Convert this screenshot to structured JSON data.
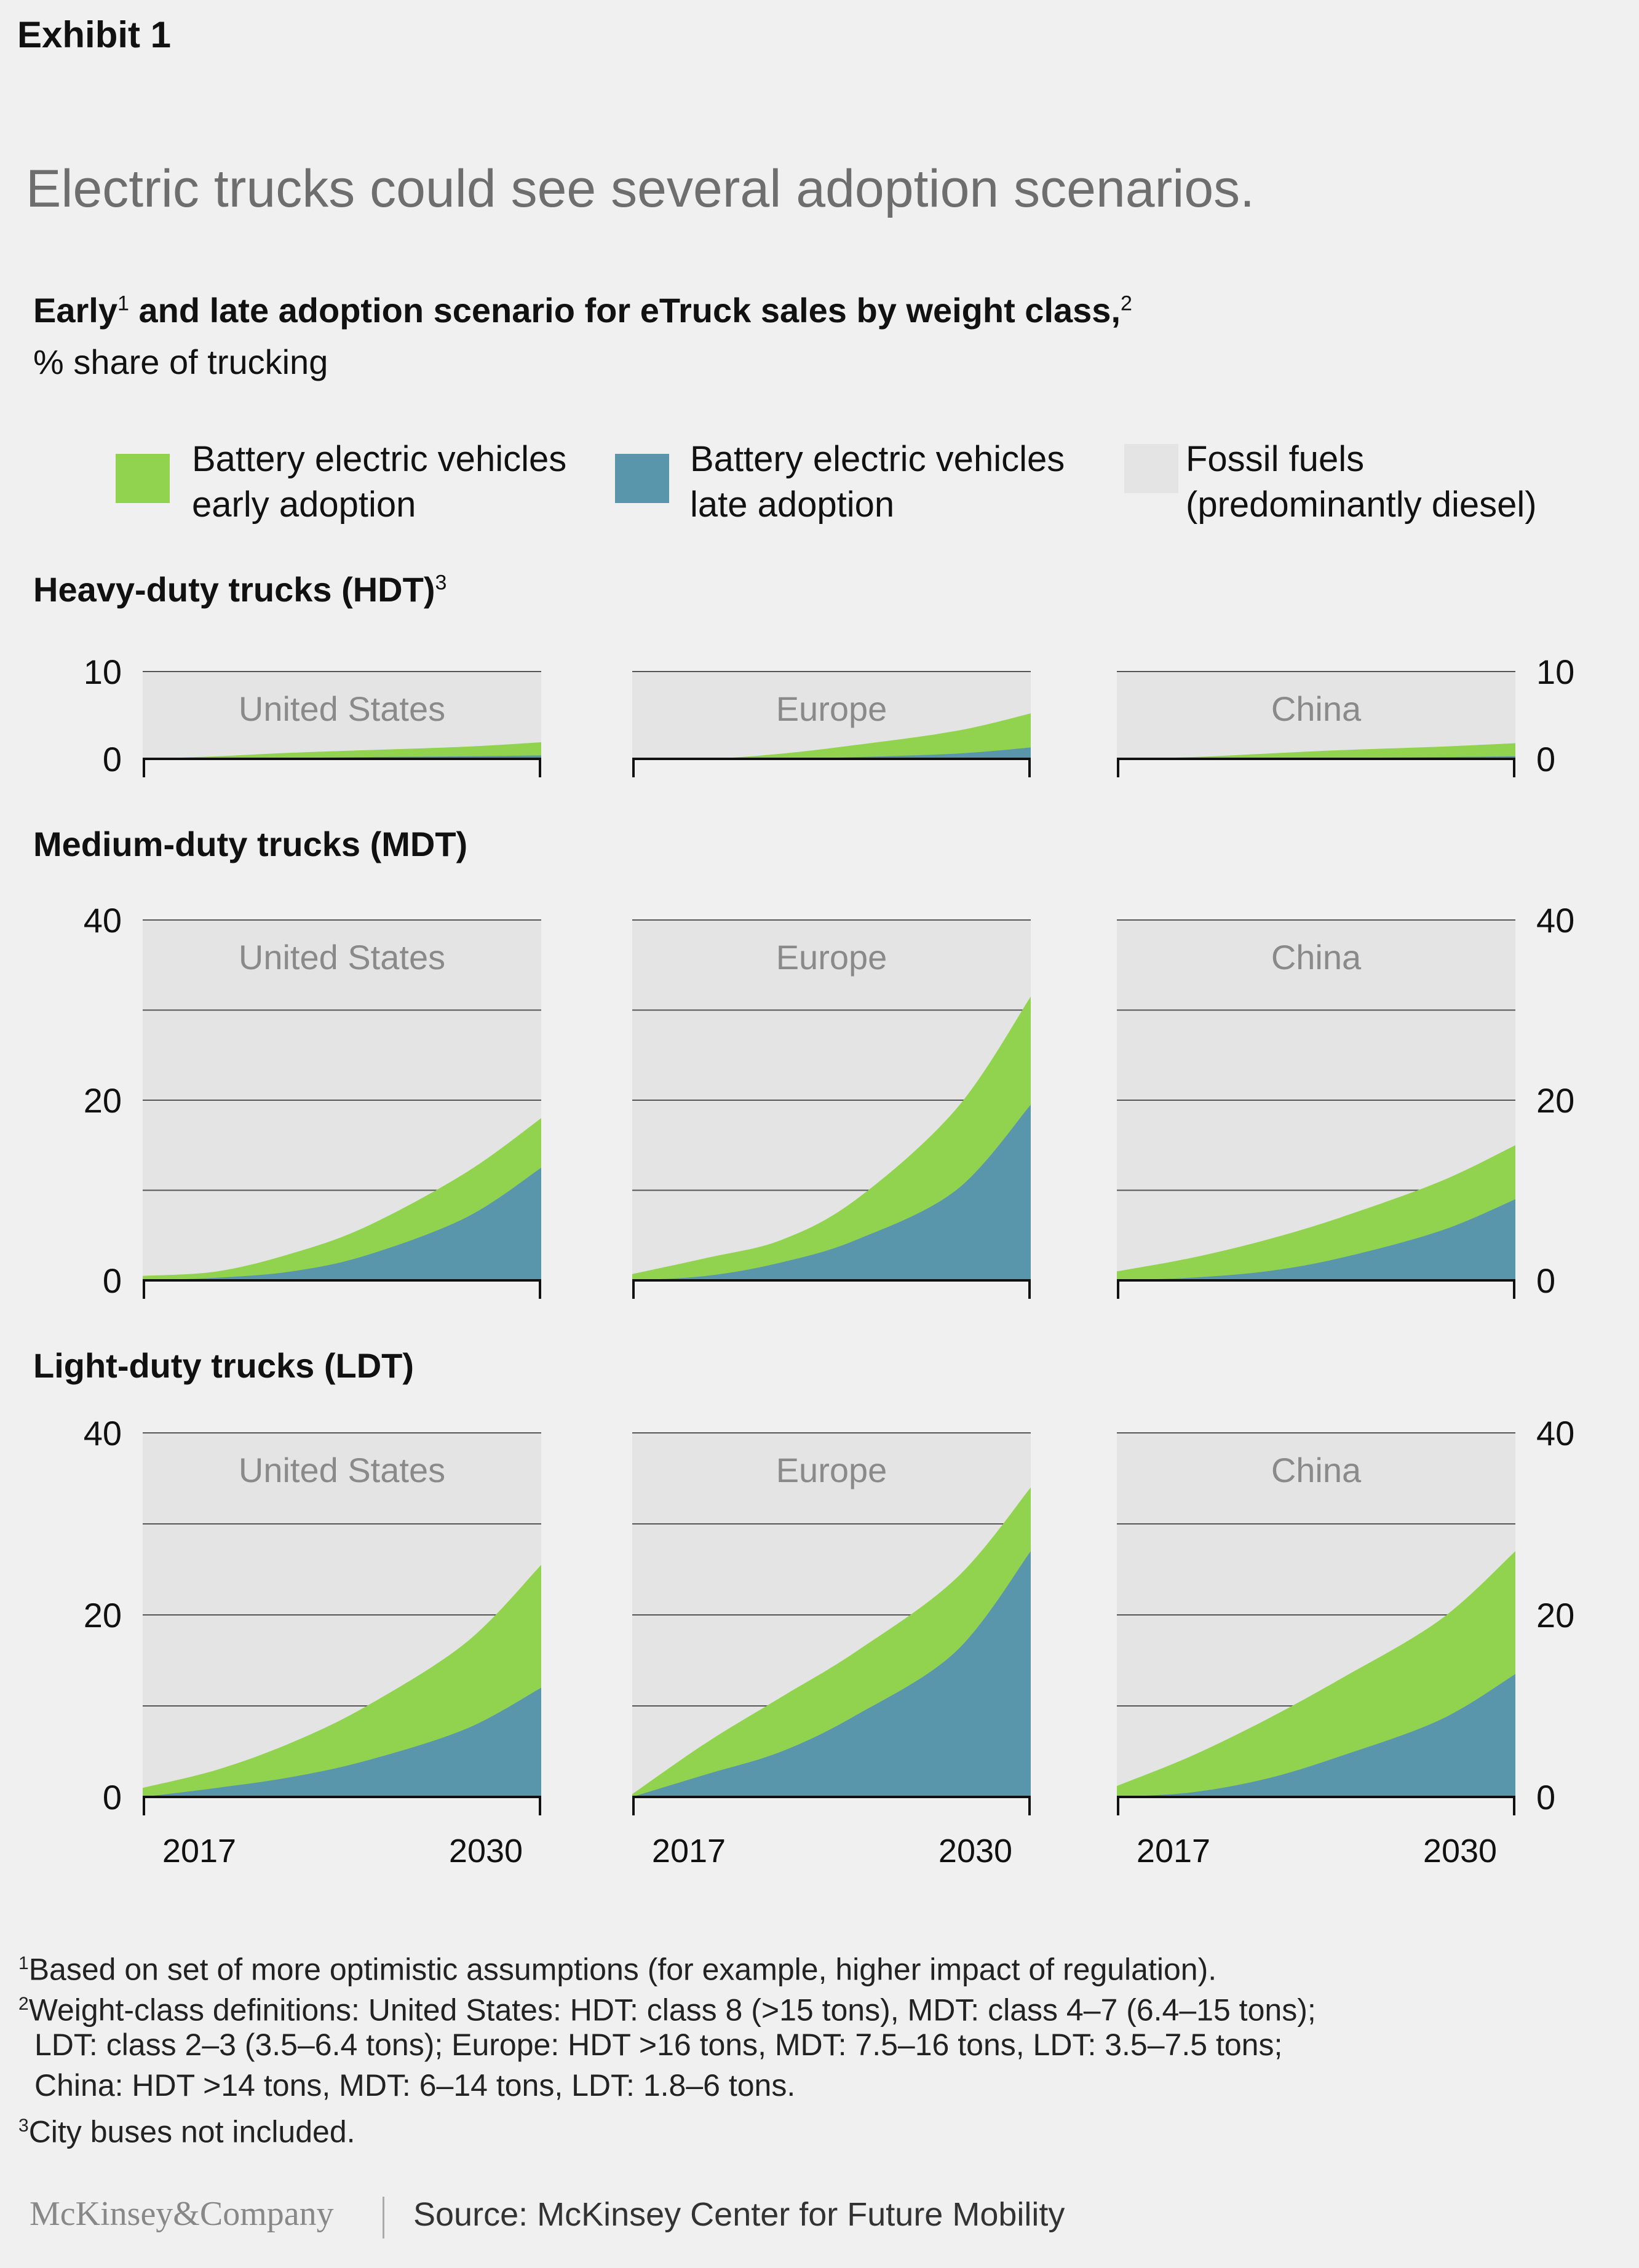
{
  "header": {
    "exhibit": "Exhibit 1",
    "headline": "Electric trucks could see several adoption scenarios.",
    "subtitle_a": "Early",
    "subtitle_sup1": "1",
    "subtitle_b": " and late adoption scenario for eTruck sales by weight class,",
    "subtitle_sup2": "2",
    "unit": "% share of trucking"
  },
  "legend": [
    {
      "line1": "Battery electric vehicles",
      "line2": "early adoption",
      "color": "#91d24e"
    },
    {
      "line1": "Battery electric vehicles",
      "line2": "late adoption",
      "color": "#5a96ab"
    },
    {
      "line1": "Fossil fuels",
      "line2": "(predominantly diesel)",
      "color": "#e4e4e4"
    }
  ],
  "sections": {
    "hdt": {
      "label": "Heavy-duty trucks (HDT)",
      "sup": "3"
    },
    "mdt": {
      "label": "Medium-duty trucks (MDT)",
      "sup": ""
    },
    "ldt": {
      "label": "Light-duty trucks (LDT)",
      "sup": ""
    }
  },
  "colors": {
    "early": "#91d24e",
    "late": "#5a96ab",
    "fossil": "#e4e4e4",
    "axis": "#111111",
    "grid": "#555555"
  },
  "chart_data": [
    {
      "type": "area",
      "row": "HDT",
      "region": "United States",
      "x": [
        2017,
        2020,
        2023,
        2026,
        2030,
        2033
      ],
      "series": [
        {
          "name": "Battery electric vehicles early adoption",
          "values": [
            0,
            0.3,
            0.7,
            1.0,
            1.4,
            1.9
          ]
        },
        {
          "name": "Battery electric vehicles late adoption",
          "values": [
            0,
            0,
            0.1,
            0.2,
            0.3,
            0.4
          ]
        }
      ],
      "ylim": [
        0,
        10
      ],
      "yticks": [
        0,
        10
      ],
      "xticks": []
    },
    {
      "type": "area",
      "row": "HDT",
      "region": "Europe",
      "x": [
        2017,
        2020,
        2023,
        2026,
        2030,
        2033
      ],
      "series": [
        {
          "name": "Battery electric vehicles early adoption",
          "values": [
            0,
            0,
            0.6,
            1.6,
            3.2,
            5.2
          ]
        },
        {
          "name": "Battery electric vehicles late adoption",
          "values": [
            0,
            0,
            0,
            0.2,
            0.6,
            1.3
          ]
        }
      ],
      "ylim": [
        0,
        10
      ],
      "yticks": [],
      "xticks": []
    },
    {
      "type": "area",
      "row": "HDT",
      "region": "China",
      "x": [
        2017,
        2020,
        2023,
        2026,
        2030,
        2033
      ],
      "series": [
        {
          "name": "Battery electric vehicles early adoption",
          "values": [
            0,
            0.2,
            0.6,
            1.0,
            1.4,
            1.8
          ]
        },
        {
          "name": "Battery electric vehicles late adoption",
          "values": [
            0,
            0,
            0,
            0.1,
            0.2,
            0.3
          ]
        }
      ],
      "ylim": [
        0,
        10
      ],
      "yticks": [
        0,
        10
      ],
      "xticks": []
    },
    {
      "type": "area",
      "row": "MDT",
      "region": "United States",
      "x": [
        2017,
        2020,
        2023,
        2026,
        2030,
        2033
      ],
      "series": [
        {
          "name": "Battery electric vehicles early adoption",
          "values": [
            0.5,
            1.0,
            3.0,
            6.0,
            12.0,
            18.0
          ]
        },
        {
          "name": "Battery electric vehicles late adoption",
          "values": [
            0,
            0.3,
            1.0,
            2.8,
            7.0,
            12.5
          ]
        }
      ],
      "ylim": [
        0,
        40
      ],
      "yticks": [
        0,
        20,
        40
      ],
      "xticks": []
    },
    {
      "type": "area",
      "row": "MDT",
      "region": "Europe",
      "x": [
        2017,
        2020,
        2023,
        2026,
        2030,
        2033
      ],
      "series": [
        {
          "name": "Battery electric vehicles early adoption",
          "values": [
            0.7,
            2.5,
            4.5,
            9.0,
            19.0,
            31.5
          ]
        },
        {
          "name": "Battery electric vehicles late adoption",
          "values": [
            0,
            0.5,
            2.0,
            4.5,
            10.0,
            19.5
          ]
        }
      ],
      "ylim": [
        0,
        40
      ],
      "yticks": [],
      "xticks": []
    },
    {
      "type": "area",
      "row": "MDT",
      "region": "China",
      "x": [
        2017,
        2020,
        2023,
        2026,
        2030,
        2033
      ],
      "series": [
        {
          "name": "Battery electric vehicles early adoption",
          "values": [
            1.0,
            2.5,
            4.5,
            7.0,
            11.0,
            15.0
          ]
        },
        {
          "name": "Battery electric vehicles late adoption",
          "values": [
            0,
            0.3,
            1.0,
            2.5,
            5.5,
            9.0
          ]
        }
      ],
      "ylim": [
        0,
        40
      ],
      "yticks": [
        0,
        20,
        40
      ],
      "xticks": []
    },
    {
      "type": "area",
      "row": "LDT",
      "region": "United States",
      "x": [
        2017,
        2020,
        2023,
        2026,
        2030,
        2033
      ],
      "series": [
        {
          "name": "Battery electric vehicles early adoption",
          "values": [
            1.0,
            3.0,
            6.0,
            10.0,
            17.0,
            25.5
          ]
        },
        {
          "name": "Battery electric vehicles late adoption",
          "values": [
            0,
            1.0,
            2.2,
            4.0,
            7.5,
            12.0
          ]
        }
      ],
      "ylim": [
        0,
        40
      ],
      "yticks": [
        0,
        20,
        40
      ],
      "xticks": [
        "2017",
        "2030"
      ]
    },
    {
      "type": "area",
      "row": "LDT",
      "region": "Europe",
      "x": [
        2017,
        2020,
        2023,
        2026,
        2030,
        2033
      ],
      "series": [
        {
          "name": "Battery electric vehicles early adoption",
          "values": [
            0.3,
            6.0,
            11.0,
            16.0,
            24.0,
            34.0
          ]
        },
        {
          "name": "Battery electric vehicles late adoption",
          "values": [
            0,
            2.5,
            5.0,
            9.0,
            16.0,
            27.0
          ]
        }
      ],
      "ylim": [
        0,
        40
      ],
      "yticks": [],
      "xticks": [
        "2017",
        "2030"
      ]
    },
    {
      "type": "area",
      "row": "LDT",
      "region": "China",
      "x": [
        2017,
        2020,
        2023,
        2026,
        2030,
        2033
      ],
      "series": [
        {
          "name": "Battery electric vehicles early adoption",
          "values": [
            1.2,
            4.5,
            8.5,
            13.0,
            19.5,
            27.0
          ]
        },
        {
          "name": "Battery electric vehicles late adoption",
          "values": [
            0,
            0.5,
            2.0,
            4.5,
            8.5,
            13.5
          ]
        }
      ],
      "ylim": [
        0,
        40
      ],
      "yticks": [
        0,
        20,
        40
      ],
      "xticks": [
        "2017",
        "2030"
      ]
    }
  ],
  "footnotes": {
    "n1_sup": "1",
    "n1": "Based on set of more optimistic assumptions (for example, higher impact of regulation).",
    "n2_sup": "2",
    "n2_l1": "Weight-class definitions: United States: HDT: class 8 (>15 tons), MDT: class 4–7 (6.4–15 tons);",
    "n2_l2": "LDT: class 2–3 (3.5–6.4 tons); Europe: HDT >16 tons, MDT: 7.5–16 tons, LDT: 3.5–7.5 tons;",
    "n2_l3": "China: HDT >14 tons, MDT: 6–14 tons, LDT: 1.8–6 tons.",
    "n3_sup": "3",
    "n3": "City buses not included."
  },
  "footer": {
    "brand": "McKinsey&Company",
    "source": "Source: McKinsey Center for Future Mobility"
  }
}
